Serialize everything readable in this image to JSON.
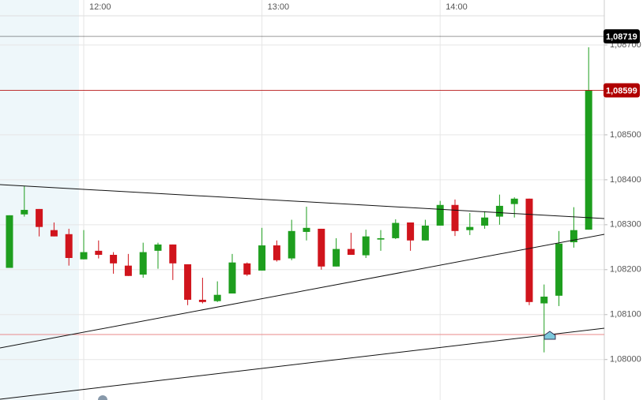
{
  "chart_data": {
    "type": "candlestick",
    "categories": [
      null,
      null,
      null,
      null,
      null,
      "12:00",
      null,
      null,
      null,
      null,
      null,
      null,
      null,
      null,
      null,
      null,
      null,
      "13:00",
      null,
      null,
      null,
      null,
      null,
      null,
      null,
      null,
      null,
      null,
      null,
      "14:00",
      null,
      null,
      null,
      null,
      null,
      null,
      null,
      null,
      null,
      null
    ],
    "open": [
      1.08204,
      1.08323,
      1.08335,
      1.08288,
      1.08279,
      1.08223,
      1.08242,
      1.08233,
      1.08209,
      1.08189,
      1.08242,
      1.08256,
      1.08212,
      1.08133,
      1.0813,
      1.08147,
      1.08214,
      1.08198,
      1.08254,
      1.08225,
      1.08284,
      1.08291,
      1.08207,
      1.08246,
      1.08232,
      1.08267,
      1.0827,
      1.08305,
      1.08265,
      1.08298,
      1.08344,
      1.08288,
      1.08298,
      1.08318,
      1.08346,
      1.08358,
      1.08125,
      1.08142,
      1.08261,
      1.08289
    ],
    "high": [
      1.08321,
      1.08386,
      1.08335,
      1.08305,
      1.08291,
      1.08288,
      1.08265,
      1.08239,
      1.08235,
      1.0826,
      1.0826,
      1.08256,
      1.08212,
      1.08182,
      1.08174,
      1.08235,
      1.08216,
      1.08293,
      1.08265,
      1.08311,
      1.0834,
      1.08291,
      1.0827,
      1.08282,
      1.08289,
      1.08288,
      1.08312,
      1.08305,
      1.08311,
      1.08353,
      1.08356,
      1.08326,
      1.0833,
      1.08367,
      1.08361,
      1.08358,
      1.08167,
      1.08286,
      1.08339,
      1.08695
    ],
    "low": [
      1.08204,
      1.08318,
      1.08274,
      1.08274,
      1.08209,
      1.08223,
      1.08225,
      1.08191,
      1.08186,
      1.08182,
      1.08202,
      1.08177,
      1.08121,
      1.08125,
      1.08128,
      1.08147,
      1.08186,
      1.08198,
      1.08218,
      1.08221,
      1.08265,
      1.082,
      1.08207,
      1.08233,
      1.08226,
      1.08242,
      1.08268,
      1.08242,
      1.08265,
      1.08298,
      1.08275,
      1.08277,
      1.08291,
      1.083,
      1.08316,
      1.08121,
      1.08016,
      1.08119,
      1.08249,
      1.08289
    ],
    "close": [
      1.08321,
      1.08333,
      1.08295,
      1.08274,
      1.08226,
      1.08239,
      1.08233,
      1.08214,
      1.08186,
      1.08239,
      1.08256,
      1.08214,
      1.08133,
      1.08128,
      1.08144,
      1.08216,
      1.08189,
      1.08254,
      1.08221,
      1.08286,
      1.08293,
      1.08207,
      1.08246,
      1.08233,
      1.08274,
      1.0827,
      1.08304,
      1.08265,
      1.08298,
      1.08344,
      1.08286,
      1.08295,
      1.08316,
      1.08342,
      1.08358,
      1.08128,
      1.0814,
      1.08258,
      1.08288,
      1.08599
    ],
    "up_color": "#1e9e1e",
    "down_color": "#d0141c",
    "ylim": [
      1.0791,
      1.088
    ],
    "yticks": [
      {
        "value": 1.08,
        "label": "1,08000"
      },
      {
        "value": 1.081,
        "label": "1,08100"
      },
      {
        "value": 1.082,
        "label": "1,08200"
      },
      {
        "value": 1.083,
        "label": "1,08300"
      },
      {
        "value": 1.084,
        "label": "1,08400"
      },
      {
        "value": 1.085,
        "label": "1,08500"
      },
      {
        "value": 1.087,
        "label": "1,08700"
      }
    ],
    "grid": true,
    "price_markers": [
      {
        "value": 1.08719,
        "label": "1,08719",
        "color": "#000000"
      },
      {
        "value": 1.08599,
        "label": "1,08599",
        "color": "#b00000"
      }
    ]
  }
}
